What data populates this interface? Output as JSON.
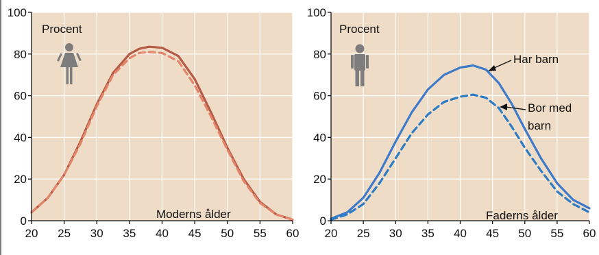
{
  "chart_data": [
    {
      "type": "line",
      "title": "",
      "ylabel": "Procent",
      "xlabel": "Moderns ålder",
      "xlim": [
        20,
        60
      ],
      "ylim": [
        0,
        100
      ],
      "xticks": [
        20,
        25,
        30,
        35,
        40,
        45,
        50,
        55,
        60
      ],
      "yticks": [
        0,
        20,
        40,
        60,
        80,
        100
      ],
      "grid": true,
      "icon": "female-person-icon",
      "series": [
        {
          "color": "#b55a45",
          "dash": "solid",
          "x": [
            20,
            22.5,
            25,
            27.5,
            30,
            32.5,
            35,
            36.5,
            38,
            40,
            42.5,
            45,
            47.5,
            50,
            52.5,
            55,
            57.5,
            60
          ],
          "y": [
            4,
            11,
            22,
            38,
            56,
            71,
            80,
            82.5,
            83.5,
            83,
            79,
            68,
            52,
            35,
            20,
            9,
            3,
            0.5
          ]
        },
        {
          "color": "#e3856a",
          "dash": "dashed",
          "x": [
            20,
            22.5,
            25,
            27.5,
            30,
            32.5,
            35,
            36.5,
            38,
            40,
            42.5,
            45,
            47.5,
            50,
            52.5,
            55,
            57.5,
            60
          ],
          "y": [
            4,
            11,
            22,
            37,
            55,
            70,
            78,
            80.5,
            81,
            80.5,
            76.5,
            65,
            50,
            34,
            19,
            8.5,
            3,
            0.5
          ]
        }
      ]
    },
    {
      "type": "line",
      "title": "",
      "ylabel": "Procent",
      "xlabel": "Faderns ålder",
      "xlim": [
        20,
        60
      ],
      "ylim": [
        0,
        100
      ],
      "xticks": [
        20,
        25,
        30,
        35,
        40,
        45,
        50,
        55,
        60
      ],
      "yticks": [
        0,
        20,
        40,
        60,
        80,
        100
      ],
      "grid": true,
      "icon": "male-person-icon",
      "series": [
        {
          "name": "Har barn",
          "color": "#3d7ac9",
          "dash": "solid",
          "x": [
            20,
            22.5,
            25,
            27.5,
            30,
            32.5,
            35,
            37.5,
            40,
            42,
            44,
            46,
            48,
            50,
            52.5,
            55,
            57.5,
            60
          ],
          "y": [
            1,
            4,
            11,
            23,
            38,
            52,
            63,
            70,
            73.5,
            74.5,
            72.5,
            66,
            56,
            44,
            30,
            18,
            10,
            6
          ]
        },
        {
          "name": "Bor med barn",
          "color": "#2b7cc4",
          "dash": "dashed",
          "x": [
            20,
            22.5,
            25,
            27.5,
            30,
            32.5,
            35,
            37.5,
            40,
            42,
            44,
            46,
            48,
            50,
            52.5,
            55,
            57.5,
            60
          ],
          "y": [
            0.5,
            3,
            8,
            18,
            30,
            42,
            51,
            57,
            59.5,
            60.5,
            59,
            54,
            45,
            35,
            24,
            14,
            8,
            4
          ]
        }
      ],
      "annotations": [
        {
          "text_lines": [
            "Har barn"
          ],
          "series": "Har barn"
        },
        {
          "text_lines": [
            "Bor med",
            "barn"
          ],
          "series": "Bor med barn"
        }
      ]
    }
  ]
}
